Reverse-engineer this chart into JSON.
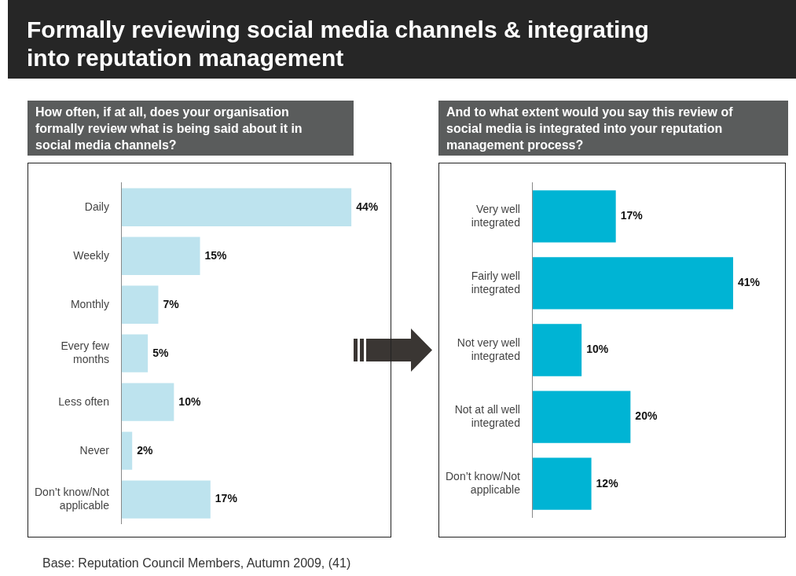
{
  "chart_data": [
    {
      "type": "bar",
      "orientation": "horizontal",
      "title": "Formally reviewing social media channels & integrating into reputation management",
      "subtitle": "How often, if at all, does your organisation formally review what is being said about it in social media channels?",
      "categories": [
        "Daily",
        "Weekly",
        "Monthly",
        "Every few months",
        "Less often",
        "Never",
        "Don’t know/Not applicable"
      ],
      "values": [
        44,
        15,
        7,
        5,
        10,
        2,
        17
      ],
      "value_labels": [
        "44%",
        "15%",
        "7%",
        "5%",
        "10%",
        "2%",
        "17%"
      ],
      "color": "#bde3ee",
      "annotations": [
        "Base: Reputation Council Members, Autumn 2009, (41)"
      ]
    },
    {
      "type": "bar",
      "orientation": "horizontal",
      "subtitle": "And to what extent would you say this review of social media is integrated into your reputation management process?",
      "categories": [
        "Very well integrated",
        "Fairly well integrated",
        "Not very well integrated",
        "Not at all well integrated",
        "Don’t know/Not applicable"
      ],
      "values": [
        17,
        41,
        10,
        20,
        12
      ],
      "value_labels": [
        "17%",
        "41%",
        "10%",
        "20%",
        "12%"
      ],
      "color": "#00b4d4"
    }
  ]
}
